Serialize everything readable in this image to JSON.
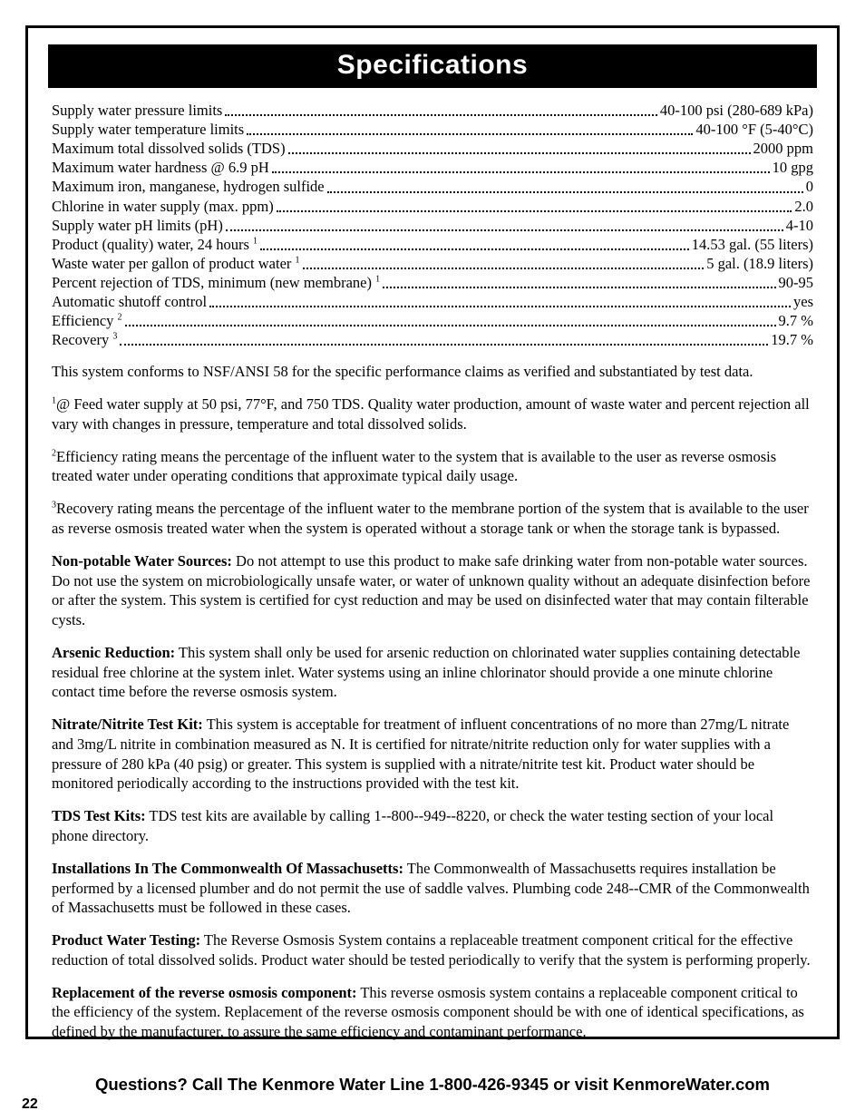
{
  "title": "Specifications",
  "specs": [
    {
      "label": "Supply water pressure limits",
      "value": "40-100 psi (280-689 kPa)"
    },
    {
      "label": "Supply water temperature limits",
      "value": "40-100 °F (5-40°C)"
    },
    {
      "label": "Maximum total dissolved solids (TDS)",
      "value": "2000 ppm"
    },
    {
      "label": "Maximum water hardness @ 6.9 pH",
      "value": "10 gpg"
    },
    {
      "label": "Maximum iron, manganese, hydrogen sulfide",
      "value": "0"
    },
    {
      "label": "Chlorine in water supply (max. ppm)",
      "value": "2.0"
    },
    {
      "label": "Supply water pH limits (pH)",
      "value": "4-10"
    },
    {
      "label": "Product (quality) water, 24 hours",
      "sup": "1",
      "value": "14.53 gal. (55 liters)"
    },
    {
      "label": "Waste water per gallon of product water",
      "sup": "1",
      "value": "5 gal. (18.9 liters)"
    },
    {
      "label": "Percent rejection of TDS, minimum (new membrane)",
      "sup": "1",
      "value": "90-95"
    },
    {
      "label": "Automatic shutoff control",
      "value": "yes"
    },
    {
      "label": "Efficiency",
      "sup": "2",
      "value": "9.7 %"
    },
    {
      "label": "Recovery",
      "sup": "3",
      "value": "19.7 %"
    }
  ],
  "conform": "This system conforms to NSF/ANSI 58 for the specific performance claims as verified and substantiated by test data.",
  "foot1_sup": "1",
  "foot1": "@ Feed water supply at 50 psi, 77°F, and 750 TDS. Quality water production, amount of waste water and percent rejection all vary with changes in pressure, temperature and total dissolved solids.",
  "foot2_sup": "2",
  "foot2": "Efficiency rating means the percentage of the influent water to the system that is available to the user as reverse osmosis treated water under operating conditions that approximate typical daily usage.",
  "foot3_sup": "3",
  "foot3": "Recovery rating means the percentage of the influent water to the membrane portion of the system that is available to the user as reverse osmosis treated water when the system is operated without a storage tank or when the storage tank is bypassed.",
  "sects": [
    {
      "head": "Non-potable Water Sources:",
      "body": " Do not attempt to use this product to make safe drinking water from non-potable water sources. Do not use the system on microbiologically unsafe water, or water of unknown quality without an adequate disinfection before or after the system. This system is certified for cyst reduction and may be used on disinfected water that may contain filterable cysts."
    },
    {
      "head": "Arsenic Reduction:",
      "body": " This system shall only be used for arsenic reduction on chlorinated water supplies containing detectable residual free chlorine at the system inlet. Water systems using an inline chlorinator should provide a one minute chlorine contact time before the reverse osmosis system."
    },
    {
      "head": "Nitrate/Nitrite Test Kit:",
      "body": " This system is acceptable for treatment of influent concentrations of no more than 27mg/L nitrate and 3mg/L nitrite in combination measured as N. It is certified for nitrate/nitrite reduction only for water supplies with a pressure of 280 kPa (40 psig) or greater. This system is supplied with a nitrate/nitrite test kit. Product water should be monitored periodically according to the instructions provided with the test kit."
    },
    {
      "head": "TDS Test Kits:",
      "body": " TDS test kits are available by calling 1--800--949--8220, or check the water testing section of your local phone directory."
    },
    {
      "head": "Installations In The Commonwealth Of Massachusetts:",
      "body": " The Commonwealth of Massachusetts requires installation be performed by a licensed plumber and do not permit the use of saddle valves. Plumbing code 248--CMR of the Commonwealth of Massachusetts must be followed in these cases."
    },
    {
      "head": "Product Water Testing:",
      "body": " The Reverse Osmosis System contains a replaceable treatment component critical for the effective reduction of total dissolved solids. Product water should be tested periodically to verify that the system is performing properly."
    },
    {
      "head": "Replacement of the reverse osmosis component:",
      "body": " This reverse osmosis system contains a replaceable component critical to the efficiency of the system. Replacement of the reverse osmosis component should be with one of identical specifications, as defined by the manufacturer, to assure the same efficiency and contaminant performance."
    }
  ],
  "footer": "Questions? Call The Kenmore Water Line 1-800-426-9345 or visit KenmoreWater.com",
  "page_number": "22",
  "style": {
    "page_bg": "#ffffff",
    "text_color": "#000000",
    "title_bg": "#000000",
    "title_color": "#ffffff",
    "border_color": "#000000",
    "body_font_size_pt": 12,
    "title_font_size_pt": 22,
    "footer_font_size_pt": 14
  }
}
